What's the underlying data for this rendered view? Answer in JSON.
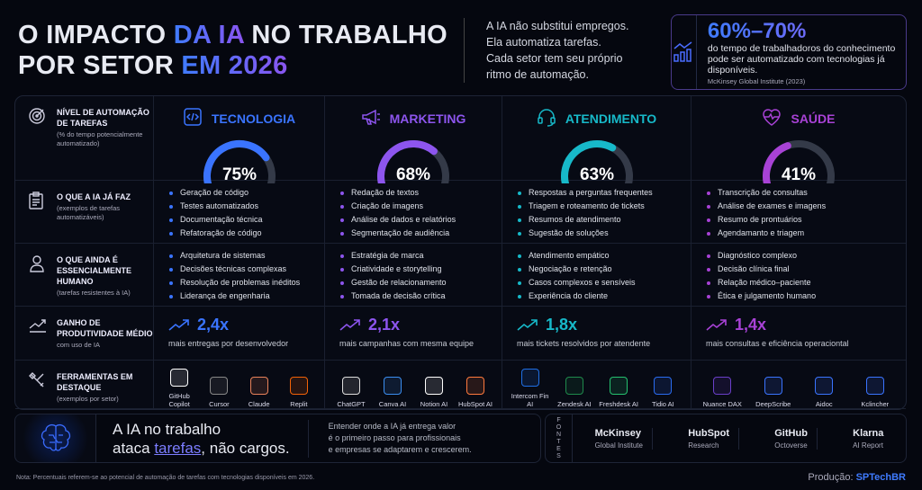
{
  "header": {
    "title_a": "O IMPACTO ",
    "title_b": "DA IA",
    "title_c": " NO TRABALHO",
    "title_d": "POR SETOR ",
    "title_e": "EM 2026",
    "intro": [
      "A IA não substitui empregos.",
      "Ela automatiza tarefas.",
      "Cada setor tem seu próprio",
      "ritmo de automação."
    ],
    "stat": {
      "value": "60%–70%",
      "desc": "do tempo de trabalhadoros do conhecimento pode ser automatizado com tecnologias já disponíveis.",
      "source": "McKinsey Global Institute (2023)",
      "icon": "bar-chart-icon"
    }
  },
  "rows": [
    {
      "title": "NÍVEL DE AUTOMAÇÃO DE TAREFAS",
      "sub": "(% do tempo potencialmente automatizado)",
      "icon": "target-icon"
    },
    {
      "title": "O QUE A IA JÁ FAZ",
      "sub": "(exemplos de tarefas automatizáveis)",
      "icon": "clipboard-icon"
    },
    {
      "title": "O QUE AINDA É ESSENCIALMENTE HUMANO",
      "sub": "(tarefas resistentes à IA)",
      "icon": "user-icon"
    },
    {
      "title": "GANHO DE PRODUTIVIDADE MÉDIO",
      "sub": "com uso de IA",
      "icon": "trend-up-icon"
    },
    {
      "title": "FERRAMENTAS EM DESTAQUE",
      "sub": "(exemplos por setor)",
      "icon": "tools-icon"
    }
  ],
  "sectors": [
    {
      "name": "TECNOLOGIA",
      "icon": "code-icon",
      "color": "#3a74ff",
      "automation": 75,
      "automation_label": "75%",
      "ai_does": [
        "Geração de código",
        "Testes automatizados",
        "Documentação técnica",
        "Refatoração de código"
      ],
      "human": [
        "Arquitetura de sistemas",
        "Decisões técnicas complexas",
        "Resolução de problemas inéditos",
        "Liderança de engenharia"
      ],
      "gain": "2,4x",
      "gain_desc": "mais entregas por desenvolvedor",
      "tools": [
        {
          "name": "GitHub Copilot",
          "color": "#ffffff"
        },
        {
          "name": "Cursor",
          "color": "#888888"
        },
        {
          "name": "Claude",
          "color": "#e8825a"
        },
        {
          "name": "Replit",
          "color": "#f26207"
        }
      ]
    },
    {
      "name": "MARKETING",
      "icon": "megaphone-icon",
      "color": "#8d55ee",
      "automation": 68,
      "automation_label": "68%",
      "ai_does": [
        "Redação de textos",
        "Criação de imagens",
        "Análise de dados e relatórios",
        "Segmentação de audiência"
      ],
      "human": [
        "Estratégia de marca",
        "Criatividade e storytelling",
        "Gestão de relacionamento",
        "Tomada de decisão crítica"
      ],
      "gain": "2,1x",
      "gain_desc": "mais campanhas com mesma equipe",
      "tools": [
        {
          "name": "ChatGPT",
          "color": "#dddddd"
        },
        {
          "name": "Canva AI",
          "color": "#3b8ef0"
        },
        {
          "name": "Notion AI",
          "color": "#ffffff"
        },
        {
          "name": "HubSpot AI",
          "color": "#ff7a3d"
        }
      ]
    },
    {
      "name": "ATENDIMENTO",
      "icon": "headset-icon",
      "color": "#17b9c9",
      "automation": 63,
      "automation_label": "63%",
      "ai_does": [
        "Respostas a perguntas frequentes",
        "Triagem e roteamento de tickets",
        "Resumos de atendimento",
        "Sugestão de soluções"
      ],
      "human": [
        "Atendimento empático",
        "Negociação e retenção",
        "Casos complexos e sensíveis",
        "Experiência do cliente"
      ],
      "gain": "1,8x",
      "gain_desc": "mais tickets resolvidos por atendente",
      "tools": [
        {
          "name": "Intercom Fin AI",
          "color": "#1f6fe5"
        },
        {
          "name": "Zendesk AI",
          "color": "#1f8a4c"
        },
        {
          "name": "Freshdesk AI",
          "color": "#25c16f"
        },
        {
          "name": "Tidio AI",
          "color": "#2a6cf0"
        }
      ]
    },
    {
      "name": "SAÚDE",
      "icon": "heart-pulse-icon",
      "color": "#a842d6",
      "automation": 41,
      "automation_label": "41%",
      "ai_does": [
        "Transcrição de consultas",
        "Análise de exames e imagens",
        "Resumo de prontuários",
        "Agendamanto e triagem"
      ],
      "human": [
        "Diagnóstico complexo",
        "Decisão clínica final",
        "Relação médico–paciente",
        "Ética e julgamento humano"
      ],
      "gain": "1,4x",
      "gain_desc": "mais consultas e eficiência operaciontal",
      "tools": [
        {
          "name": "Nuance DAX",
          "color": "#6a3fc8"
        },
        {
          "name": "DeepScribe",
          "color": "#3a74ff"
        },
        {
          "name": "Aidoc",
          "color": "#3a74ff"
        },
        {
          "name": "Kclincher",
          "color": "#3a74ff"
        }
      ]
    }
  ],
  "footer": {
    "tag_a": "A IA no trabalho",
    "tag_b": "ataca ",
    "tag_u": "tarefas",
    "tag_c": ", não cargos.",
    "sub": [
      "Entender onde a IA já entrega valor",
      "é o primeiro passo para profissionais",
      "e empresas se adaptarem e crescerem."
    ],
    "fontes": "FONTES",
    "sources": [
      {
        "name": "McKinsey",
        "sub": "Global Institute"
      },
      {
        "name": "HubSpot",
        "sub": "Research"
      },
      {
        "name": "GitHub",
        "sub": "Octoverse"
      },
      {
        "name": "Klarna",
        "sub": "AI Report"
      }
    ],
    "note": "Nota: Percentuais referem-se ao potencial de automação de tarefas com tecnologias disponíveis em 2026.",
    "prod_label": "Produção: ",
    "prod_brand": "SPTechBR"
  }
}
